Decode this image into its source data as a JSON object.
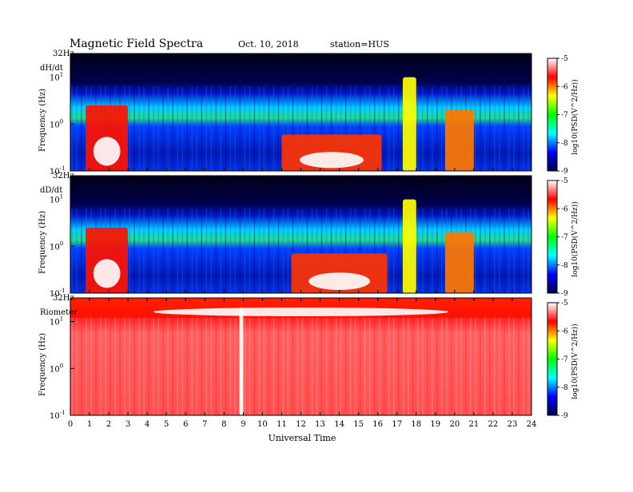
{
  "header": {
    "title": "Magnetic  Field  Spectra",
    "date": "Oct. 10, 2018",
    "station": "station=HUS"
  },
  "chart_data": [
    {
      "type": "heatmap",
      "panel_label": "dH/dt",
      "ylabel": "Frequency  (Hz)",
      "top_label": "32Hz",
      "y_ticks": [
        "10",
        "10",
        "10"
      ],
      "y_tick_exponents": [
        "1",
        "0",
        "-1"
      ],
      "ylim_hz": [
        0.1,
        32
      ],
      "xlim_hours": [
        0,
        24
      ],
      "colorbar": {
        "ticks": [
          "-5",
          "-6",
          "-7",
          "-8",
          "-9"
        ],
        "label": "log10(PSD(V^2/Hz))"
      },
      "features": [
        {
          "name": "broadband-hours-1-3",
          "x": [
            0.8,
            3.0
          ],
          "y": [
            0.1,
            2.5
          ],
          "level": -5.3
        },
        {
          "name": "event-hours-12-16",
          "x": [
            11.0,
            16.2
          ],
          "y": [
            0.1,
            0.6
          ],
          "level": -5.4
        },
        {
          "name": "spike-hour-17.6",
          "x": [
            17.3,
            18.0
          ],
          "y": [
            0.1,
            10
          ],
          "level": -6.0
        },
        {
          "name": "event-hours-19.5-21",
          "x": [
            19.5,
            21.0
          ],
          "y": [
            0.1,
            2.0
          ],
          "level": -5.6
        }
      ]
    },
    {
      "type": "heatmap",
      "panel_label": "dD/dt",
      "ylabel": "Frequency  (Hz)",
      "top_label": "32Hz",
      "y_ticks": [
        "10",
        "10",
        "10"
      ],
      "y_tick_exponents": [
        "1",
        "0",
        "-1"
      ],
      "ylim_hz": [
        0.1,
        32
      ],
      "xlim_hours": [
        0,
        24
      ],
      "colorbar": {
        "ticks": [
          "-5",
          "-6",
          "-7",
          "-8",
          "-9"
        ],
        "label": "log10(PSD(V^2/Hz))"
      },
      "features": [
        {
          "name": "broadband-hours-1-3",
          "x": [
            0.8,
            3.0
          ],
          "y": [
            0.1,
            2.5
          ],
          "level": -5.3
        },
        {
          "name": "event-hours-12-16",
          "x": [
            11.5,
            16.5
          ],
          "y": [
            0.1,
            0.7
          ],
          "level": -5.4
        },
        {
          "name": "spike-hour-17.6",
          "x": [
            17.3,
            18.0
          ],
          "y": [
            0.1,
            10
          ],
          "level": -6.0
        },
        {
          "name": "event-hours-19.5-21",
          "x": [
            19.5,
            21.0
          ],
          "y": [
            0.1,
            2.0
          ],
          "level": -5.6
        }
      ]
    },
    {
      "type": "heatmap",
      "panel_label": "Riometer",
      "ylabel": "Frequency  (Hz)",
      "top_label": "32Hz",
      "y_ticks": [
        "10",
        "10",
        "10"
      ],
      "y_tick_exponents": [
        "1",
        "0",
        "-1"
      ],
      "ylim_hz": [
        0.1,
        32
      ],
      "xlim_hours": [
        0,
        24
      ],
      "xlabel": "Universal Time",
      "x_ticks": [
        "0",
        "1",
        "2",
        "3",
        "4",
        "5",
        "6",
        "7",
        "8",
        "9",
        "10",
        "11",
        "12",
        "13",
        "14",
        "15",
        "16",
        "17",
        "18",
        "19",
        "20",
        "21",
        "22",
        "23",
        "24"
      ],
      "colorbar": {
        "ticks": [
          "-5",
          "-6",
          "-7",
          "-8",
          "-9"
        ],
        "label": "log10(PSD(V^2/Hz))"
      },
      "features": [
        {
          "name": "band-near-top",
          "x": [
            0,
            24
          ],
          "y": [
            12,
            32
          ],
          "level": -5.3
        },
        {
          "name": "white-gap-hour-8.9",
          "x": [
            8.8,
            9.0
          ],
          "y": [
            0.1,
            20
          ],
          "level": -4.5
        }
      ]
    }
  ],
  "colors": {
    "background": "#ffffff",
    "colormap": [
      "#00004a",
      "#0000ff",
      "#00ffff",
      "#00ff00",
      "#ffff00",
      "#ff0000",
      "#ffffff"
    ]
  }
}
